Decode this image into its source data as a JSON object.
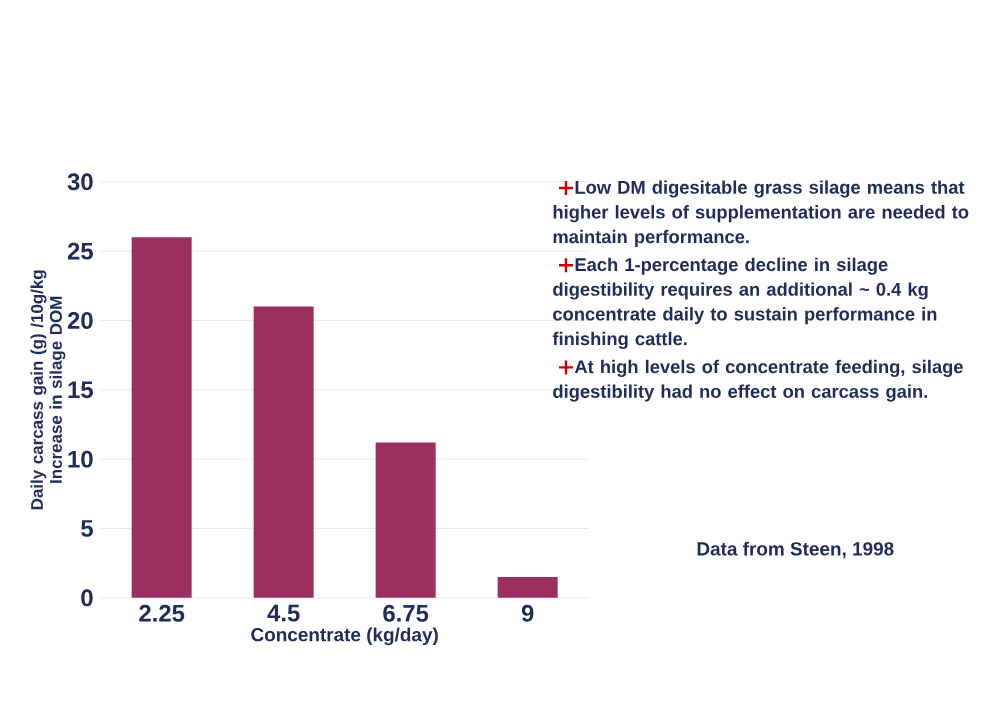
{
  "chart_data": {
    "type": "bar",
    "xlabel": "Concentrate (kg/day)",
    "ylabel": "Daily carcass gain (g) /10g/kg Increase in silage DOM",
    "categories": [
      "2.25",
      "4.5",
      "6.75",
      "9"
    ],
    "values": [
      26,
      21,
      11.2,
      1.5
    ],
    "color": "#9b2f5f",
    "ylim": [
      0,
      30
    ],
    "yticks": [
      0,
      5,
      10,
      15,
      20,
      25,
      30
    ],
    "grid": "y",
    "annotations": [
      "Low DM digesitable grass silage means that higher levels of supplementation are needed to maintain performance.",
      "Each 1-percentage decline in silage digestibility requires an additional ~ 0.4 kg concentrate daily to sustain performance in finishing cattle.",
      "At high levels of concentrate feeding, silage digestibility had no effect on carcass gain.",
      "Data from Steen, 1998"
    ]
  }
}
